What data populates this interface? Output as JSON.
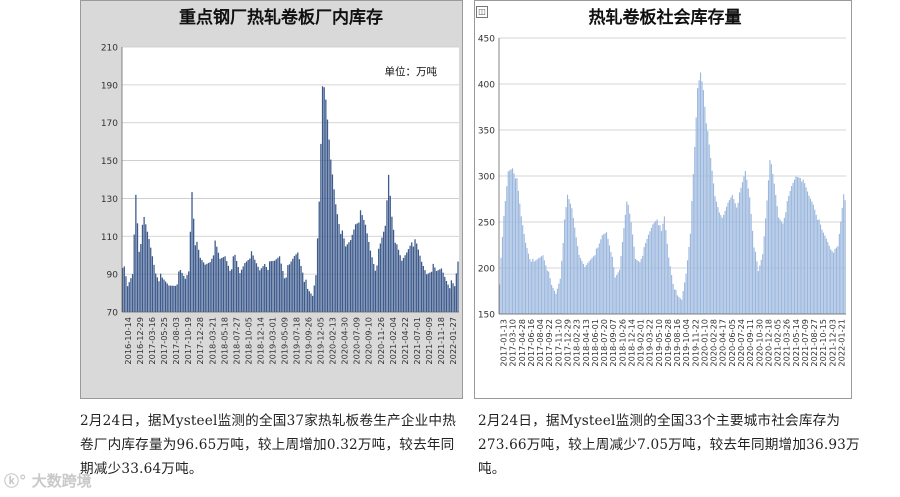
{
  "chart_data": [
    {
      "type": "bar",
      "title": "重点钢厂热轧卷板厂内库存",
      "unit_label": "单位：万吨",
      "ylim": [
        70,
        210
      ],
      "yticks": [
        70,
        90,
        110,
        130,
        150,
        170,
        190,
        210
      ],
      "grid": true,
      "bar_color": "#3d5a8c",
      "background": "#d9d9d9",
      "plot_background": "#ffffff",
      "x_tick_labels": [
        "2016-10-14",
        "2016-12-29",
        "2017-03-16",
        "2017-05-25",
        "2017-08-03",
        "2017-10-19",
        "2017-12-28",
        "2018-03-21",
        "2018-05-18",
        "2018-07-27",
        "2018-10-05",
        "2018-12-14",
        "2019-03-01",
        "2019-05-09",
        "2019-07-18",
        "2019-09-26",
        "2019-12-05",
        "2020-02-13",
        "2020-04-30",
        "2020-07-09",
        "2020-09-10",
        "2020-11-26",
        "2021-02-04",
        "2021-04-22",
        "2021-07-01",
        "2021-09-09",
        "2021-11-18",
        "2022-01-27"
      ],
      "key_points": [
        {
          "x": 0,
          "y": 96
        },
        {
          "x": 3,
          "y": 82
        },
        {
          "x": 6,
          "y": 90
        },
        {
          "x": 8,
          "y": 133
        },
        {
          "x": 10,
          "y": 104
        },
        {
          "x": 13,
          "y": 118
        },
        {
          "x": 16,
          "y": 108
        },
        {
          "x": 20,
          "y": 92
        },
        {
          "x": 24,
          "y": 86
        },
        {
          "x": 28,
          "y": 84
        },
        {
          "x": 32,
          "y": 86
        },
        {
          "x": 35,
          "y": 90
        },
        {
          "x": 38,
          "y": 87
        },
        {
          "x": 40,
          "y": 92
        },
        {
          "x": 42,
          "y": 135
        },
        {
          "x": 44,
          "y": 108
        },
        {
          "x": 47,
          "y": 97
        },
        {
          "x": 50,
          "y": 95
        },
        {
          "x": 53,
          "y": 98
        },
        {
          "x": 56,
          "y": 105
        },
        {
          "x": 59,
          "y": 97
        },
        {
          "x": 62,
          "y": 100
        },
        {
          "x": 65,
          "y": 94
        },
        {
          "x": 68,
          "y": 98
        },
        {
          "x": 71,
          "y": 90
        },
        {
          "x": 74,
          "y": 97
        },
        {
          "x": 77,
          "y": 101
        },
        {
          "x": 80,
          "y": 96
        },
        {
          "x": 83,
          "y": 92
        },
        {
          "x": 86,
          "y": 97
        },
        {
          "x": 89,
          "y": 94
        },
        {
          "x": 92,
          "y": 96
        },
        {
          "x": 95,
          "y": 100
        },
        {
          "x": 98,
          "y": 90
        },
        {
          "x": 101,
          "y": 93
        },
        {
          "x": 104,
          "y": 99
        },
        {
          "x": 106,
          "y": 102
        },
        {
          "x": 109,
          "y": 93
        },
        {
          "x": 112,
          "y": 80
        },
        {
          "x": 115,
          "y": 78
        },
        {
          "x": 117,
          "y": 90
        },
        {
          "x": 119,
          "y": 130
        },
        {
          "x": 121,
          "y": 192
        },
        {
          "x": 123,
          "y": 180
        },
        {
          "x": 126,
          "y": 150
        },
        {
          "x": 129,
          "y": 128
        },
        {
          "x": 132,
          "y": 114
        },
        {
          "x": 135,
          "y": 103
        },
        {
          "x": 138,
          "y": 108
        },
        {
          "x": 141,
          "y": 118
        },
        {
          "x": 144,
          "y": 121
        },
        {
          "x": 147,
          "y": 115
        },
        {
          "x": 150,
          "y": 103
        },
        {
          "x": 153,
          "y": 94
        },
        {
          "x": 156,
          "y": 104
        },
        {
          "x": 159,
          "y": 115
        },
        {
          "x": 161,
          "y": 143
        },
        {
          "x": 163,
          "y": 122
        },
        {
          "x": 166,
          "y": 103
        },
        {
          "x": 169,
          "y": 96
        },
        {
          "x": 172,
          "y": 102
        },
        {
          "x": 175,
          "y": 109
        },
        {
          "x": 178,
          "y": 104
        },
        {
          "x": 181,
          "y": 96
        },
        {
          "x": 184,
          "y": 91
        },
        {
          "x": 187,
          "y": 94
        },
        {
          "x": 190,
          "y": 90
        },
        {
          "x": 193,
          "y": 93
        },
        {
          "x": 196,
          "y": 88
        },
        {
          "x": 199,
          "y": 84
        },
        {
          "x": 201,
          "y": 82
        },
        {
          "x": 203,
          "y": 96.65
        }
      ]
    },
    {
      "type": "bar",
      "title": "热轧卷板社会库存量",
      "ylim": [
        150,
        450
      ],
      "yticks": [
        150,
        200,
        250,
        300,
        350,
        400,
        450
      ],
      "grid": true,
      "bar_color": "#9bb7de",
      "background": "#ffffff",
      "plot_background": "#ffffff",
      "x_tick_labels": [
        "2017-01-13",
        "2017-03-10",
        "2017-04-28",
        "2017-06-16",
        "2017-08-04",
        "2017-09-22",
        "2017-11-10",
        "2017-12-29",
        "2018-02-23",
        "2018-04-13",
        "2018-06-01",
        "2018-07-20",
        "2018-09-07",
        "2018-10-26",
        "2018-12-14",
        "2019-02-01",
        "2019-03-22",
        "2019-05-10",
        "2019-06-28",
        "2019-08-16",
        "2019-10-04",
        "2019-11-22",
        "2020-01-10",
        "2020-02-28",
        "2020-04-17",
        "2020-06-05",
        "2020-07-24",
        "2020-09-11",
        "2020-10-30",
        "2020-12-18",
        "2021-02-05",
        "2021-03-26",
        "2021-05-14",
        "2021-07-09",
        "2021-08-27",
        "2021-10-15",
        "2021-12-03",
        "2022-01-21"
      ],
      "key_points": [
        {
          "x": 0,
          "y": 185
        },
        {
          "x": 3,
          "y": 255
        },
        {
          "x": 6,
          "y": 305
        },
        {
          "x": 9,
          "y": 310
        },
        {
          "x": 12,
          "y": 295
        },
        {
          "x": 15,
          "y": 255
        },
        {
          "x": 18,
          "y": 228
        },
        {
          "x": 21,
          "y": 212
        },
        {
          "x": 24,
          "y": 205
        },
        {
          "x": 27,
          "y": 210
        },
        {
          "x": 30,
          "y": 215
        },
        {
          "x": 33,
          "y": 200
        },
        {
          "x": 36,
          "y": 180
        },
        {
          "x": 39,
          "y": 172
        },
        {
          "x": 42,
          "y": 190
        },
        {
          "x": 45,
          "y": 250
        },
        {
          "x": 47,
          "y": 278
        },
        {
          "x": 50,
          "y": 265
        },
        {
          "x": 53,
          "y": 235
        },
        {
          "x": 56,
          "y": 208
        },
        {
          "x": 59,
          "y": 200
        },
        {
          "x": 62,
          "y": 208
        },
        {
          "x": 65,
          "y": 215
        },
        {
          "x": 68,
          "y": 220
        },
        {
          "x": 71,
          "y": 235
        },
        {
          "x": 74,
          "y": 240
        },
        {
          "x": 77,
          "y": 220
        },
        {
          "x": 80,
          "y": 188
        },
        {
          "x": 83,
          "y": 198
        },
        {
          "x": 86,
          "y": 245
        },
        {
          "x": 88,
          "y": 275
        },
        {
          "x": 91,
          "y": 248
        },
        {
          "x": 94,
          "y": 210
        },
        {
          "x": 97,
          "y": 208
        },
        {
          "x": 100,
          "y": 220
        },
        {
          "x": 103,
          "y": 235
        },
        {
          "x": 106,
          "y": 248
        },
        {
          "x": 109,
          "y": 255
        },
        {
          "x": 112,
          "y": 238
        },
        {
          "x": 114,
          "y": 255
        },
        {
          "x": 117,
          "y": 212
        },
        {
          "x": 120,
          "y": 185
        },
        {
          "x": 123,
          "y": 168
        },
        {
          "x": 126,
          "y": 165
        },
        {
          "x": 129,
          "y": 195
        },
        {
          "x": 132,
          "y": 240
        },
        {
          "x": 135,
          "y": 330
        },
        {
          "x": 137,
          "y": 395
        },
        {
          "x": 139,
          "y": 413
        },
        {
          "x": 141,
          "y": 395
        },
        {
          "x": 143,
          "y": 360
        },
        {
          "x": 146,
          "y": 318
        },
        {
          "x": 149,
          "y": 278
        },
        {
          "x": 152,
          "y": 262
        },
        {
          "x": 155,
          "y": 255
        },
        {
          "x": 158,
          "y": 270
        },
        {
          "x": 161,
          "y": 280
        },
        {
          "x": 164,
          "y": 268
        },
        {
          "x": 167,
          "y": 285
        },
        {
          "x": 170,
          "y": 305
        },
        {
          "x": 173,
          "y": 278
        },
        {
          "x": 176,
          "y": 225
        },
        {
          "x": 179,
          "y": 195
        },
        {
          "x": 182,
          "y": 215
        },
        {
          "x": 185,
          "y": 275
        },
        {
          "x": 187,
          "y": 320
        },
        {
          "x": 190,
          "y": 290
        },
        {
          "x": 193,
          "y": 255
        },
        {
          "x": 196,
          "y": 250
        },
        {
          "x": 199,
          "y": 270
        },
        {
          "x": 202,
          "y": 288
        },
        {
          "x": 205,
          "y": 300
        },
        {
          "x": 208,
          "y": 300
        },
        {
          "x": 211,
          "y": 290
        },
        {
          "x": 214,
          "y": 278
        },
        {
          "x": 217,
          "y": 270
        },
        {
          "x": 220,
          "y": 255
        },
        {
          "x": 223,
          "y": 240
        },
        {
          "x": 226,
          "y": 232
        },
        {
          "x": 229,
          "y": 222
        },
        {
          "x": 232,
          "y": 218
        },
        {
          "x": 234,
          "y": 222
        },
        {
          "x": 236,
          "y": 250
        },
        {
          "x": 238,
          "y": 280.71
        },
        {
          "x": 239,
          "y": 273.66
        }
      ]
    }
  ],
  "captions": {
    "left": "2月24日，据Mysteel监测的全国37家热轧板卷生产企业中热卷厂内库存量为96.65万吨，较上周增加0.32万吨，较去年同期减少33.64万吨。",
    "right": "2月24日，据Mysteel监测的全国33个主要城市社会库存为273.66万吨，较上周减少7.05万吨，较去年同期增加36.93万吨。"
  },
  "watermark": "大数跨境",
  "corner_icon": "image-placeholder-icon"
}
